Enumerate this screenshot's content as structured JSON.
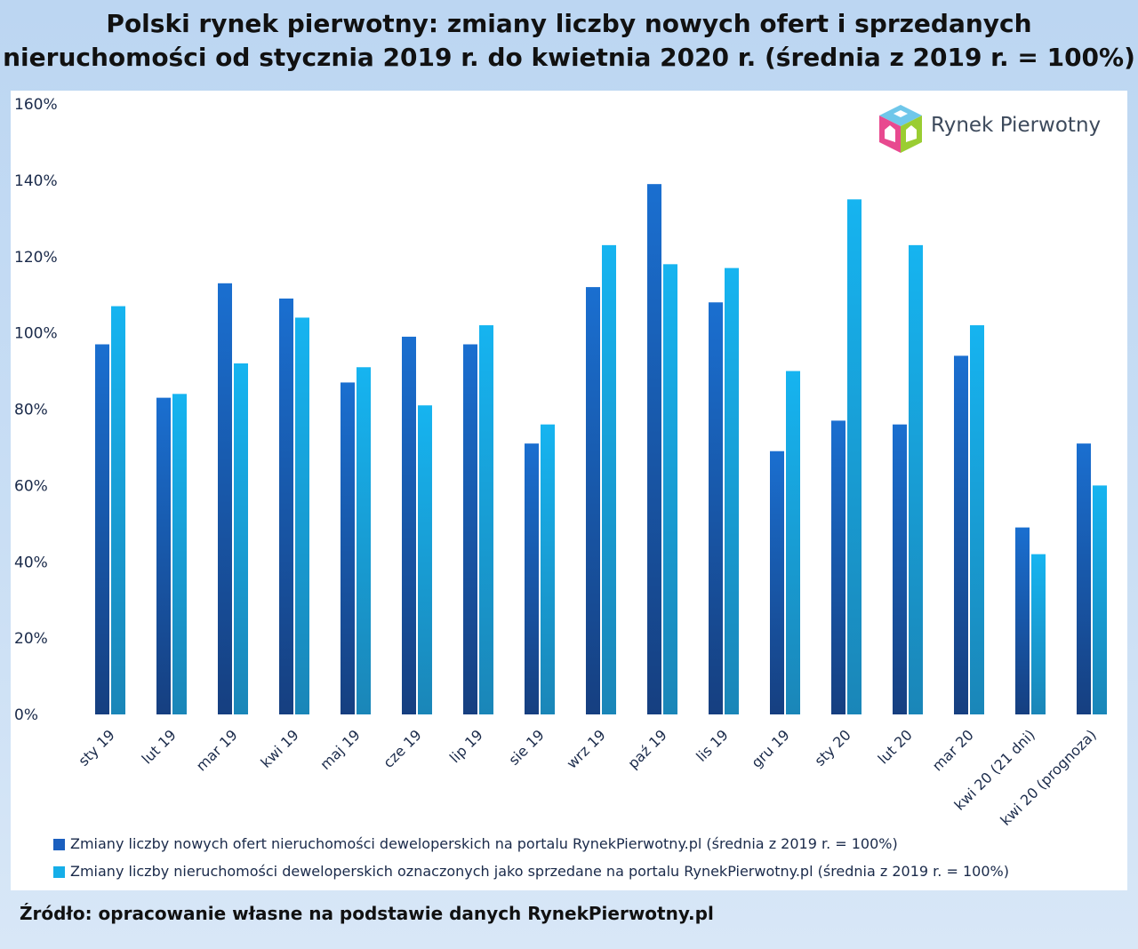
{
  "title": {
    "line1": "Polski rynek pierwotny: zmiany liczby nowych ofert i sprzedanych",
    "line2": "nieruchomości od stycznia 2019 r. do kwietnia 2020 r. (średnia z 2019 r. = 100%)"
  },
  "logo": {
    "text": "Rynek Pierwotny",
    "icon": "house-cube-icon"
  },
  "source": "Źródło: opracowanie własne na podstawie danych RynekPierwotny.pl",
  "colors": {
    "series1_top": "#1a6fd0",
    "series1_bottom": "#163f80",
    "series2_top": "#16b4f0",
    "series2_bottom": "#1a86b8"
  },
  "chart_data": {
    "type": "bar",
    "categories": [
      "sty 19",
      "lut 19",
      "mar 19",
      "kwi 19",
      "maj 19",
      "cze 19",
      "lip 19",
      "sie 19",
      "wrz 19",
      "paź 19",
      "lis 19",
      "gru 19",
      "sty 20",
      "lut 20",
      "mar 20",
      "kwi 20 (21 dni)",
      "kwi 20 (prognoza)"
    ],
    "series": [
      {
        "name": "Zmiany liczby nowych ofert nieruchomości deweloperskich na portalu RynekPierwotny.pl (średnia z 2019 r. = 100%)",
        "values": [
          97,
          83,
          113,
          109,
          87,
          99,
          97,
          71,
          112,
          139,
          108,
          69,
          77,
          76,
          94,
          49,
          71
        ]
      },
      {
        "name": "Zmiany liczby nieruchomości deweloperskich oznaczonych jako sprzedane na portalu RynekPierwotny.pl (średnia z 2019 r. = 100%)",
        "values": [
          107,
          84,
          92,
          104,
          91,
          81,
          102,
          76,
          123,
          118,
          117,
          90,
          135,
          123,
          102,
          42,
          60
        ]
      }
    ],
    "yticks": [
      "0%",
      "20%",
      "40%",
      "60%",
      "80%",
      "100%",
      "120%",
      "140%",
      "160%"
    ],
    "ylim": [
      0,
      160
    ],
    "grid": false,
    "legend": "bottom-left"
  }
}
